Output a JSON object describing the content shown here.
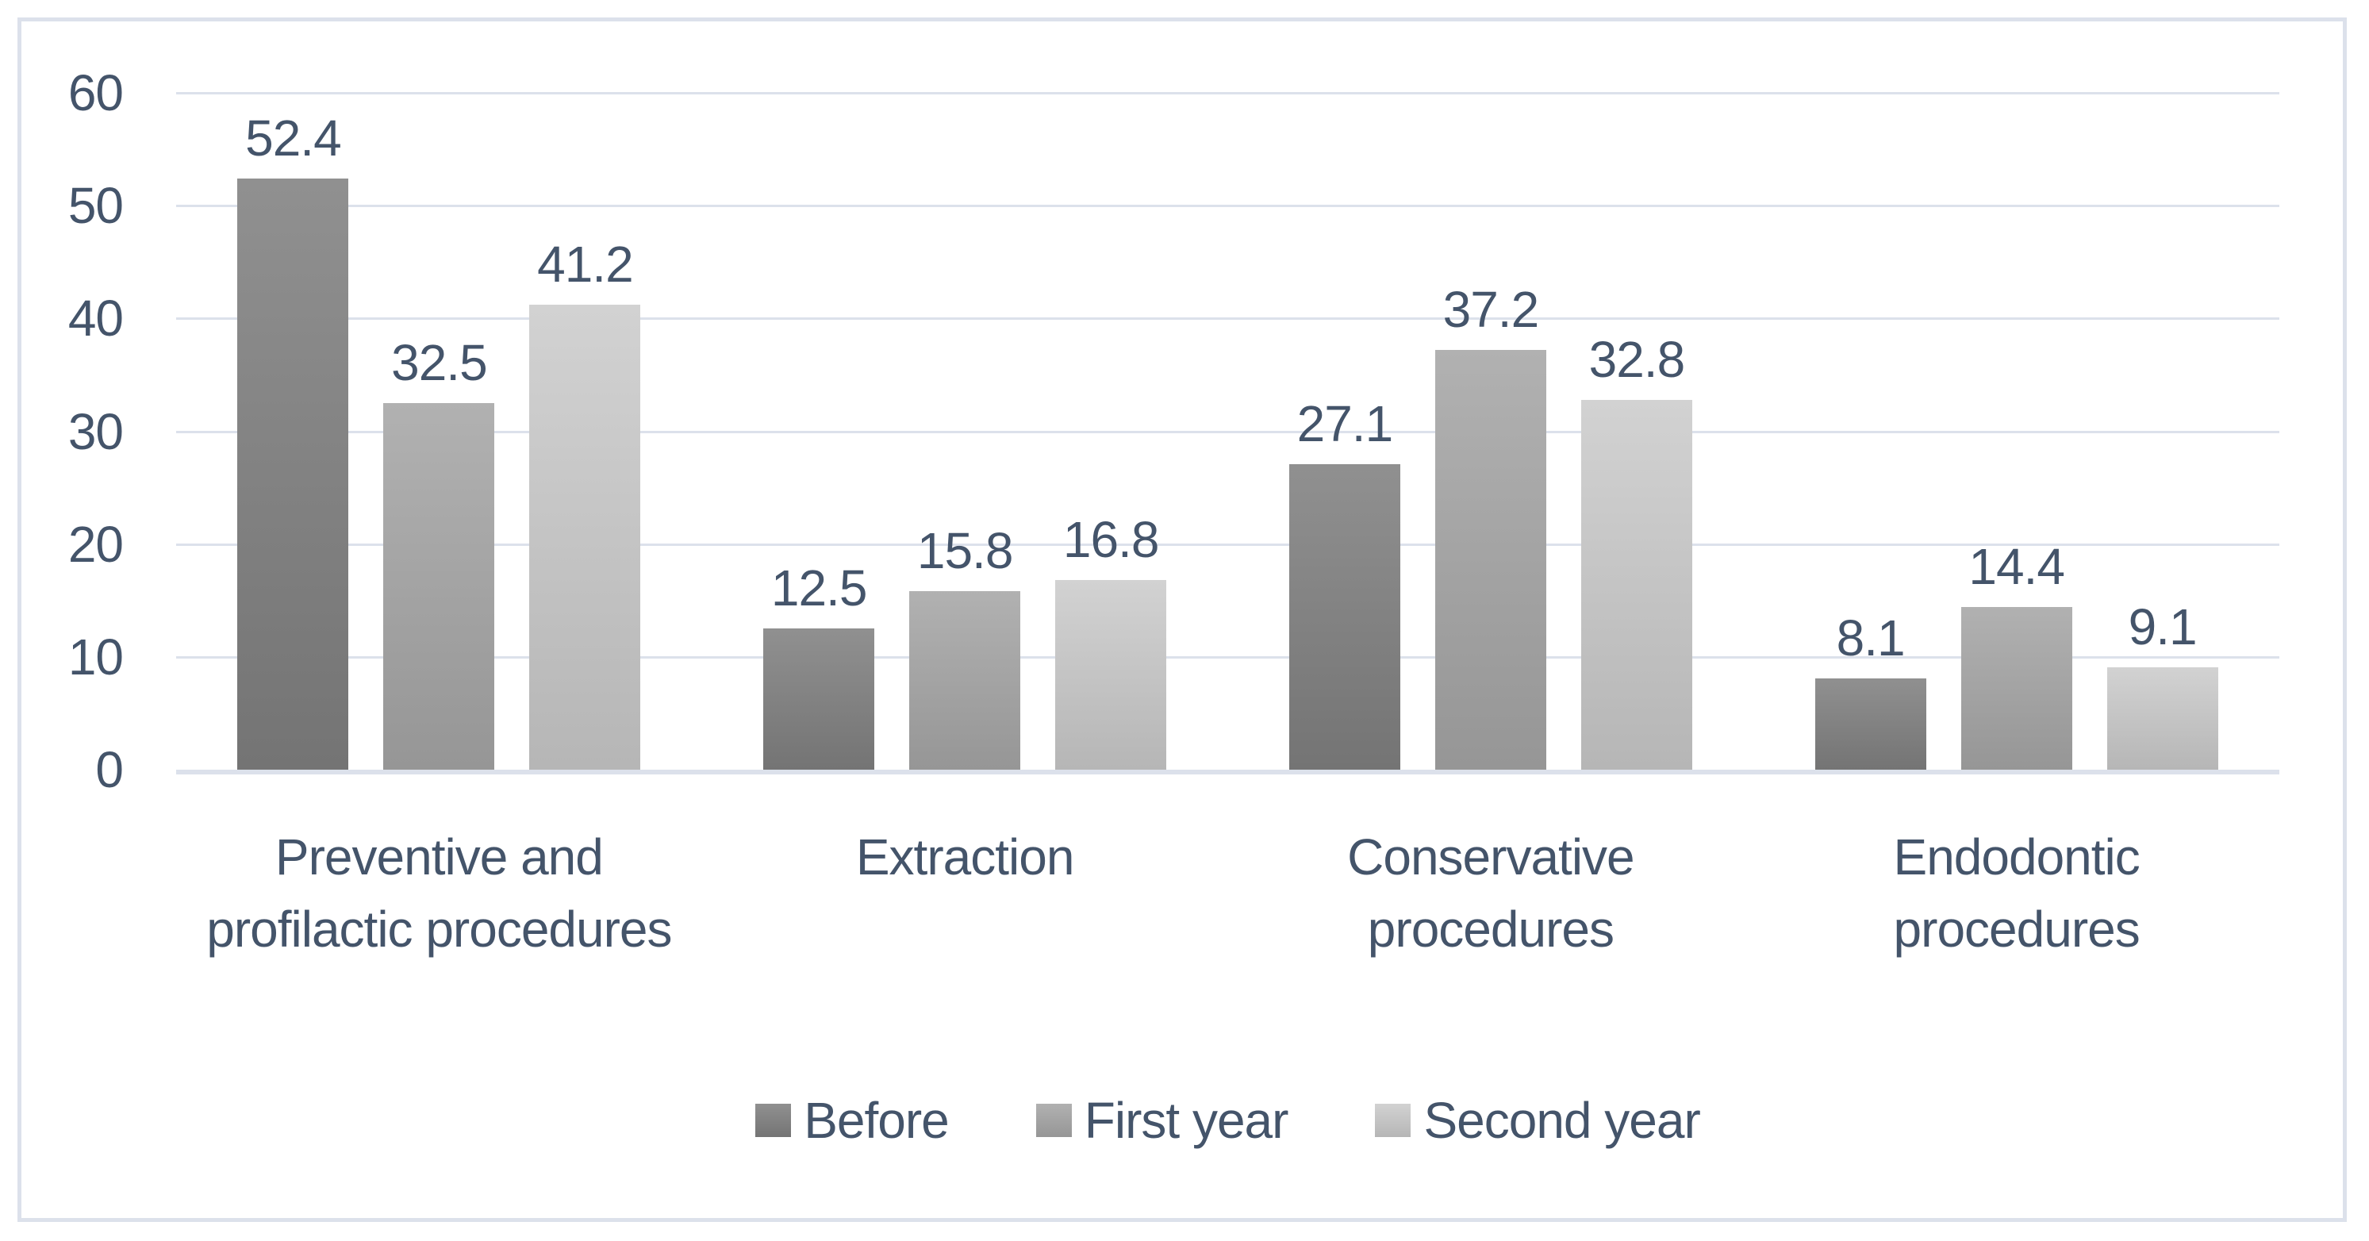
{
  "chart_data": {
    "type": "bar",
    "title": "",
    "categories": [
      "Preventive and profilactic procedures",
      "Extraction",
      "Conservative procedures",
      "Endodontic procedures"
    ],
    "series": [
      {
        "name": "Before",
        "values": [
          52.4,
          12.5,
          27.1,
          8.1
        ],
        "color_top": "#909090",
        "color_bottom": "#747474"
      },
      {
        "name": "First year",
        "values": [
          32.5,
          15.8,
          37.2,
          14.4
        ],
        "color_top": "#B1B1B1",
        "color_bottom": "#969696"
      },
      {
        "name": "Second year",
        "values": [
          41.2,
          16.8,
          32.8,
          9.1
        ],
        "color_top": "#D2D2D2",
        "color_bottom": "#B6B6B6"
      }
    ],
    "y_ticks": [
      0,
      10,
      20,
      30,
      40,
      50,
      60
    ],
    "ylim": [
      0,
      60
    ],
    "grid": true,
    "value_labels": true,
    "value_label_decimals": 1,
    "legend_position": "bottom",
    "xlabel": "",
    "ylabel": ""
  },
  "colors": {
    "text": "#44546A",
    "gridline": "#DCE1EB",
    "axis_line": "#DCE1EB",
    "frame_border": "#DCE1EB",
    "background": "#FFFFFF"
  }
}
